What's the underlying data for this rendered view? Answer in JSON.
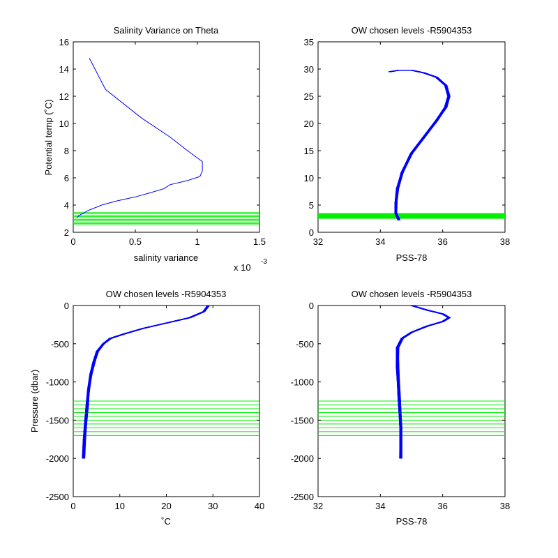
{
  "chart_data": [
    {
      "id": "p1",
      "type": "line",
      "title": "Salinity Variance on Theta",
      "xlabel": "salinity variance",
      "ylabel": "Potential temp (˚C)",
      "x_exponent_label": "x 10",
      "x_exponent_power": "-3",
      "xlim": [
        0,
        1.5
      ],
      "ylim": [
        2,
        16
      ],
      "xticks": [
        0,
        0.5,
        1,
        1.5
      ],
      "xticklabels": [
        "0",
        "0.5",
        "1",
        "1.5"
      ],
      "yticks": [
        2,
        4,
        6,
        8,
        10,
        12,
        14,
        16
      ],
      "yticklabels": [
        "2",
        "4",
        "6",
        "8",
        "10",
        "12",
        "14",
        "16"
      ],
      "series": [
        {
          "color": "#0000ff",
          "x": [
            0.13,
            0.26,
            0.55,
            0.78,
            0.92,
            1.04,
            1.04,
            1.02,
            0.92,
            0.78,
            0.73,
            0.62,
            0.5,
            0.35,
            0.23,
            0.12,
            0.06,
            0.03
          ],
          "y": [
            14.8,
            12.5,
            10.4,
            9.0,
            8.0,
            7.2,
            6.5,
            6.1,
            5.8,
            5.5,
            5.2,
            4.9,
            4.6,
            4.3,
            4.0,
            3.6,
            3.3,
            3.1
          ]
        }
      ],
      "hlines": {
        "color": "#00ee00",
        "values": [
          2.55,
          2.65,
          2.75,
          2.85,
          2.95,
          3.05,
          3.15,
          3.25,
          3.35,
          3.45
        ]
      }
    },
    {
      "id": "p2",
      "type": "line",
      "title": "OW chosen levels -R5904353",
      "xlabel": "PSS-78",
      "ylabel": "",
      "xlim": [
        32,
        38
      ],
      "ylim": [
        0,
        35
      ],
      "xticks": [
        32,
        34,
        36,
        38
      ],
      "xticklabels": [
        "32",
        "34",
        "36",
        "38"
      ],
      "yticks": [
        0,
        5,
        10,
        15,
        20,
        25,
        30,
        35
      ],
      "yticklabels": [
        "0",
        "5",
        "10",
        "15",
        "20",
        "25",
        "30",
        "35"
      ],
      "series": [
        {
          "color": "#0000ff",
          "x": [
            34.6,
            34.5,
            34.5,
            34.55,
            34.7,
            35.0,
            35.4,
            35.8,
            36.1,
            36.2,
            36.1,
            35.8,
            35.4,
            35.0,
            34.6,
            34.3
          ],
          "y": [
            2.2,
            3.5,
            5.5,
            8.0,
            11.0,
            14.5,
            17.5,
            20.5,
            23.0,
            25.0,
            27.0,
            28.5,
            29.3,
            29.8,
            29.8,
            29.5
          ]
        }
      ],
      "hlines": {
        "color": "#00ee00",
        "values": [
          2.55,
          2.65,
          2.75,
          2.85,
          2.95,
          3.05,
          3.15,
          3.25,
          3.35,
          3.45
        ]
      }
    },
    {
      "id": "p3",
      "type": "line",
      "title": "OW chosen levels -R5904353",
      "xlabel": "˚C",
      "ylabel": "Pressure (dbar)",
      "xlim": [
        0,
        40
      ],
      "ylim": [
        -2500,
        0
      ],
      "xticks": [
        0,
        10,
        20,
        30,
        40
      ],
      "xticklabels": [
        "0",
        "10",
        "20",
        "30",
        "40"
      ],
      "yticks": [
        -2500,
        -2000,
        -1500,
        -1000,
        -500,
        0
      ],
      "yticklabels": [
        "-2500",
        "-2000",
        "-1500",
        "-1000",
        "-500",
        "0"
      ],
      "series": [
        {
          "color": "#0000ff",
          "x": [
            29,
            28,
            25,
            20,
            15,
            11,
            8,
            6.5,
            5.2,
            4.4,
            3.8,
            3.3,
            3.0,
            2.7,
            2.4,
            2.2
          ],
          "y": [
            0,
            -80,
            -160,
            -230,
            -300,
            -370,
            -430,
            -500,
            -600,
            -750,
            -900,
            -1100,
            -1300,
            -1500,
            -1750,
            -2000
          ]
        }
      ],
      "hlines": {
        "color": "#00ee00",
        "values": [
          -1250,
          -1300,
          -1350,
          -1400,
          -1450,
          -1500,
          -1550,
          -1600,
          -1650,
          -1700
        ]
      }
    },
    {
      "id": "p4",
      "type": "line",
      "title": "OW chosen levels -R5904353",
      "xlabel": "PSS-78",
      "ylabel": "",
      "xlim": [
        32,
        38
      ],
      "ylim": [
        -2500,
        0
      ],
      "xticks": [
        32,
        34,
        36,
        38
      ],
      "xticklabels": [
        "32",
        "34",
        "36",
        "38"
      ],
      "yticks": [
        -2500,
        -2000,
        -1500,
        -1000,
        -500,
        0
      ],
      "yticklabels": [
        "-2500",
        "-2000",
        "-1500",
        "-1000",
        "-500",
        "0"
      ],
      "series": [
        {
          "color": "#0000ff",
          "x": [
            35.0,
            35.5,
            36.0,
            36.2,
            36.0,
            35.5,
            35.0,
            34.7,
            34.55,
            34.55,
            34.6,
            34.65,
            34.65
          ],
          "y": [
            0,
            -60,
            -110,
            -160,
            -210,
            -270,
            -350,
            -430,
            -550,
            -800,
            -1200,
            -1600,
            -2000
          ]
        }
      ],
      "hlines": {
        "color": "#00ee00",
        "values": [
          -1250,
          -1300,
          -1350,
          -1400,
          -1450,
          -1500,
          -1550,
          -1600,
          -1650,
          -1700
        ]
      }
    }
  ]
}
